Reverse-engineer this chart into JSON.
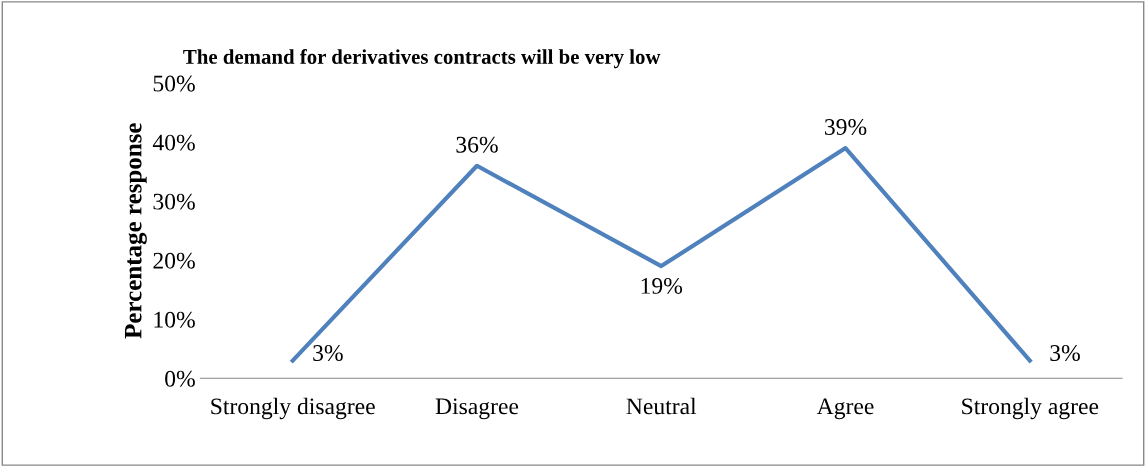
{
  "chart_data": {
    "type": "line",
    "title": "The demand for derivatives contracts will be very low",
    "ylabel": "Percentage response",
    "categories": [
      "Strongly disagree",
      "Disagree",
      "Neutral",
      "Agree",
      "Strongly agree"
    ],
    "series": [
      {
        "color": "#4f81bd",
        "values": [
          3,
          36,
          19,
          39,
          3
        ]
      }
    ],
    "ylim": [
      0,
      50
    ],
    "yticks": [
      {
        "value": 0,
        "label": "0%"
      },
      {
        "value": 10,
        "label": "10%"
      },
      {
        "value": 20,
        "label": "20%"
      },
      {
        "value": 30,
        "label": "30%"
      },
      {
        "value": 40,
        "label": "40%"
      },
      {
        "value": 50,
        "label": "50%"
      }
    ],
    "value_labels": [
      "3%",
      "36%",
      "19%",
      "39%",
      "3%"
    ],
    "grid": false,
    "legend": false,
    "marker": "none",
    "line_style": "solid"
  }
}
